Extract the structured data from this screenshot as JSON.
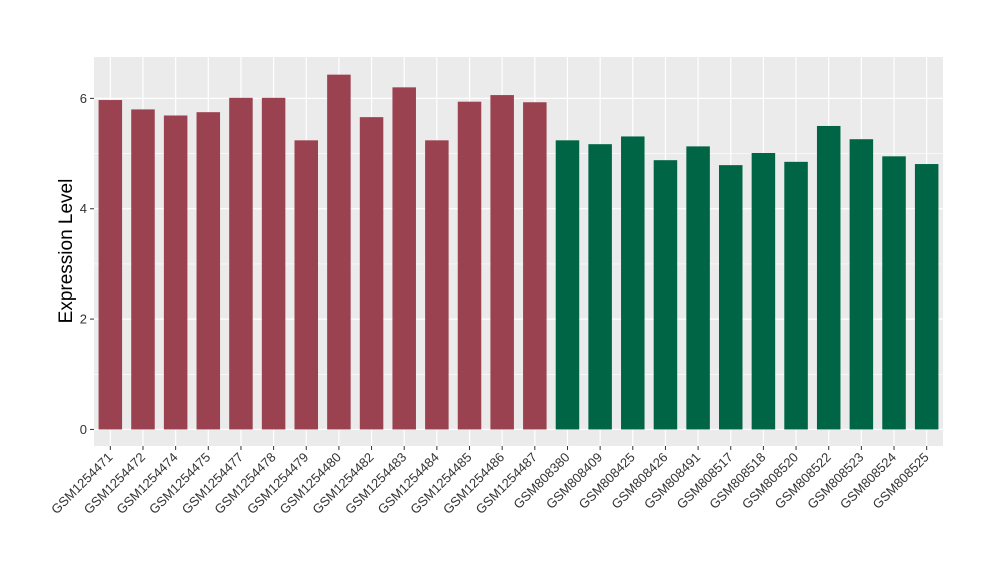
{
  "chart_data": {
    "type": "bar",
    "title": "",
    "xlabel": "",
    "ylabel": "Expression Level",
    "ylim": [
      -0.3,
      6.75
    ],
    "yticks": [
      0,
      2,
      4,
      6
    ],
    "grid": true,
    "legend": "none",
    "colors": {
      "group1": "#9b4250",
      "group2": "#006544",
      "panel": "#ebebeb",
      "gridline": "#ffffff"
    },
    "categories": [
      "GSM1254471",
      "GSM1254472",
      "GSM1254474",
      "GSM1254475",
      "GSM1254477",
      "GSM1254478",
      "GSM1254479",
      "GSM1254480",
      "GSM1254482",
      "GSM1254483",
      "GSM1254484",
      "GSM1254485",
      "GSM1254486",
      "GSM1254487",
      "GSM808380",
      "GSM808409",
      "GSM808425",
      "GSM808426",
      "GSM808491",
      "GSM808517",
      "GSM808518",
      "GSM808520",
      "GSM808522",
      "GSM808523",
      "GSM808524",
      "GSM808525"
    ],
    "values": [
      5.97,
      5.8,
      5.69,
      5.75,
      6.01,
      6.01,
      5.24,
      6.43,
      5.66,
      6.2,
      5.24,
      5.94,
      6.06,
      5.93,
      5.24,
      5.17,
      5.31,
      4.88,
      5.13,
      4.79,
      5.01,
      4.85,
      5.5,
      5.26,
      4.95,
      4.81
    ],
    "groups": [
      "group1",
      "group1",
      "group1",
      "group1",
      "group1",
      "group1",
      "group1",
      "group1",
      "group1",
      "group1",
      "group1",
      "group1",
      "group1",
      "group1",
      "group2",
      "group2",
      "group2",
      "group2",
      "group2",
      "group2",
      "group2",
      "group2",
      "group2",
      "group2",
      "group2",
      "group2"
    ]
  }
}
